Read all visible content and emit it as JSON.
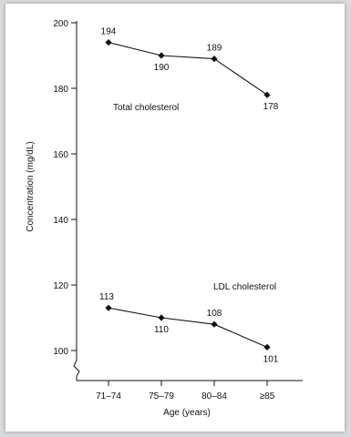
{
  "chart_data": {
    "type": "line",
    "categories": [
      "71–74",
      "75–79",
      "80–84",
      "≥85"
    ],
    "series": [
      {
        "name": "Total cholesterol",
        "values": [
          194,
          190,
          189,
          178
        ]
      },
      {
        "name": "LDL cholesterol",
        "values": [
          113,
          110,
          108,
          101
        ]
      }
    ],
    "xlabel": "Age (years)",
    "ylabel": "Concentration (mg/dL)",
    "ylim": [
      100,
      200
    ],
    "yticks": [
      100,
      120,
      140,
      160,
      180,
      200
    ],
    "axis_break": true,
    "grid": false,
    "marker": "diamond",
    "line_color": "#111111"
  }
}
